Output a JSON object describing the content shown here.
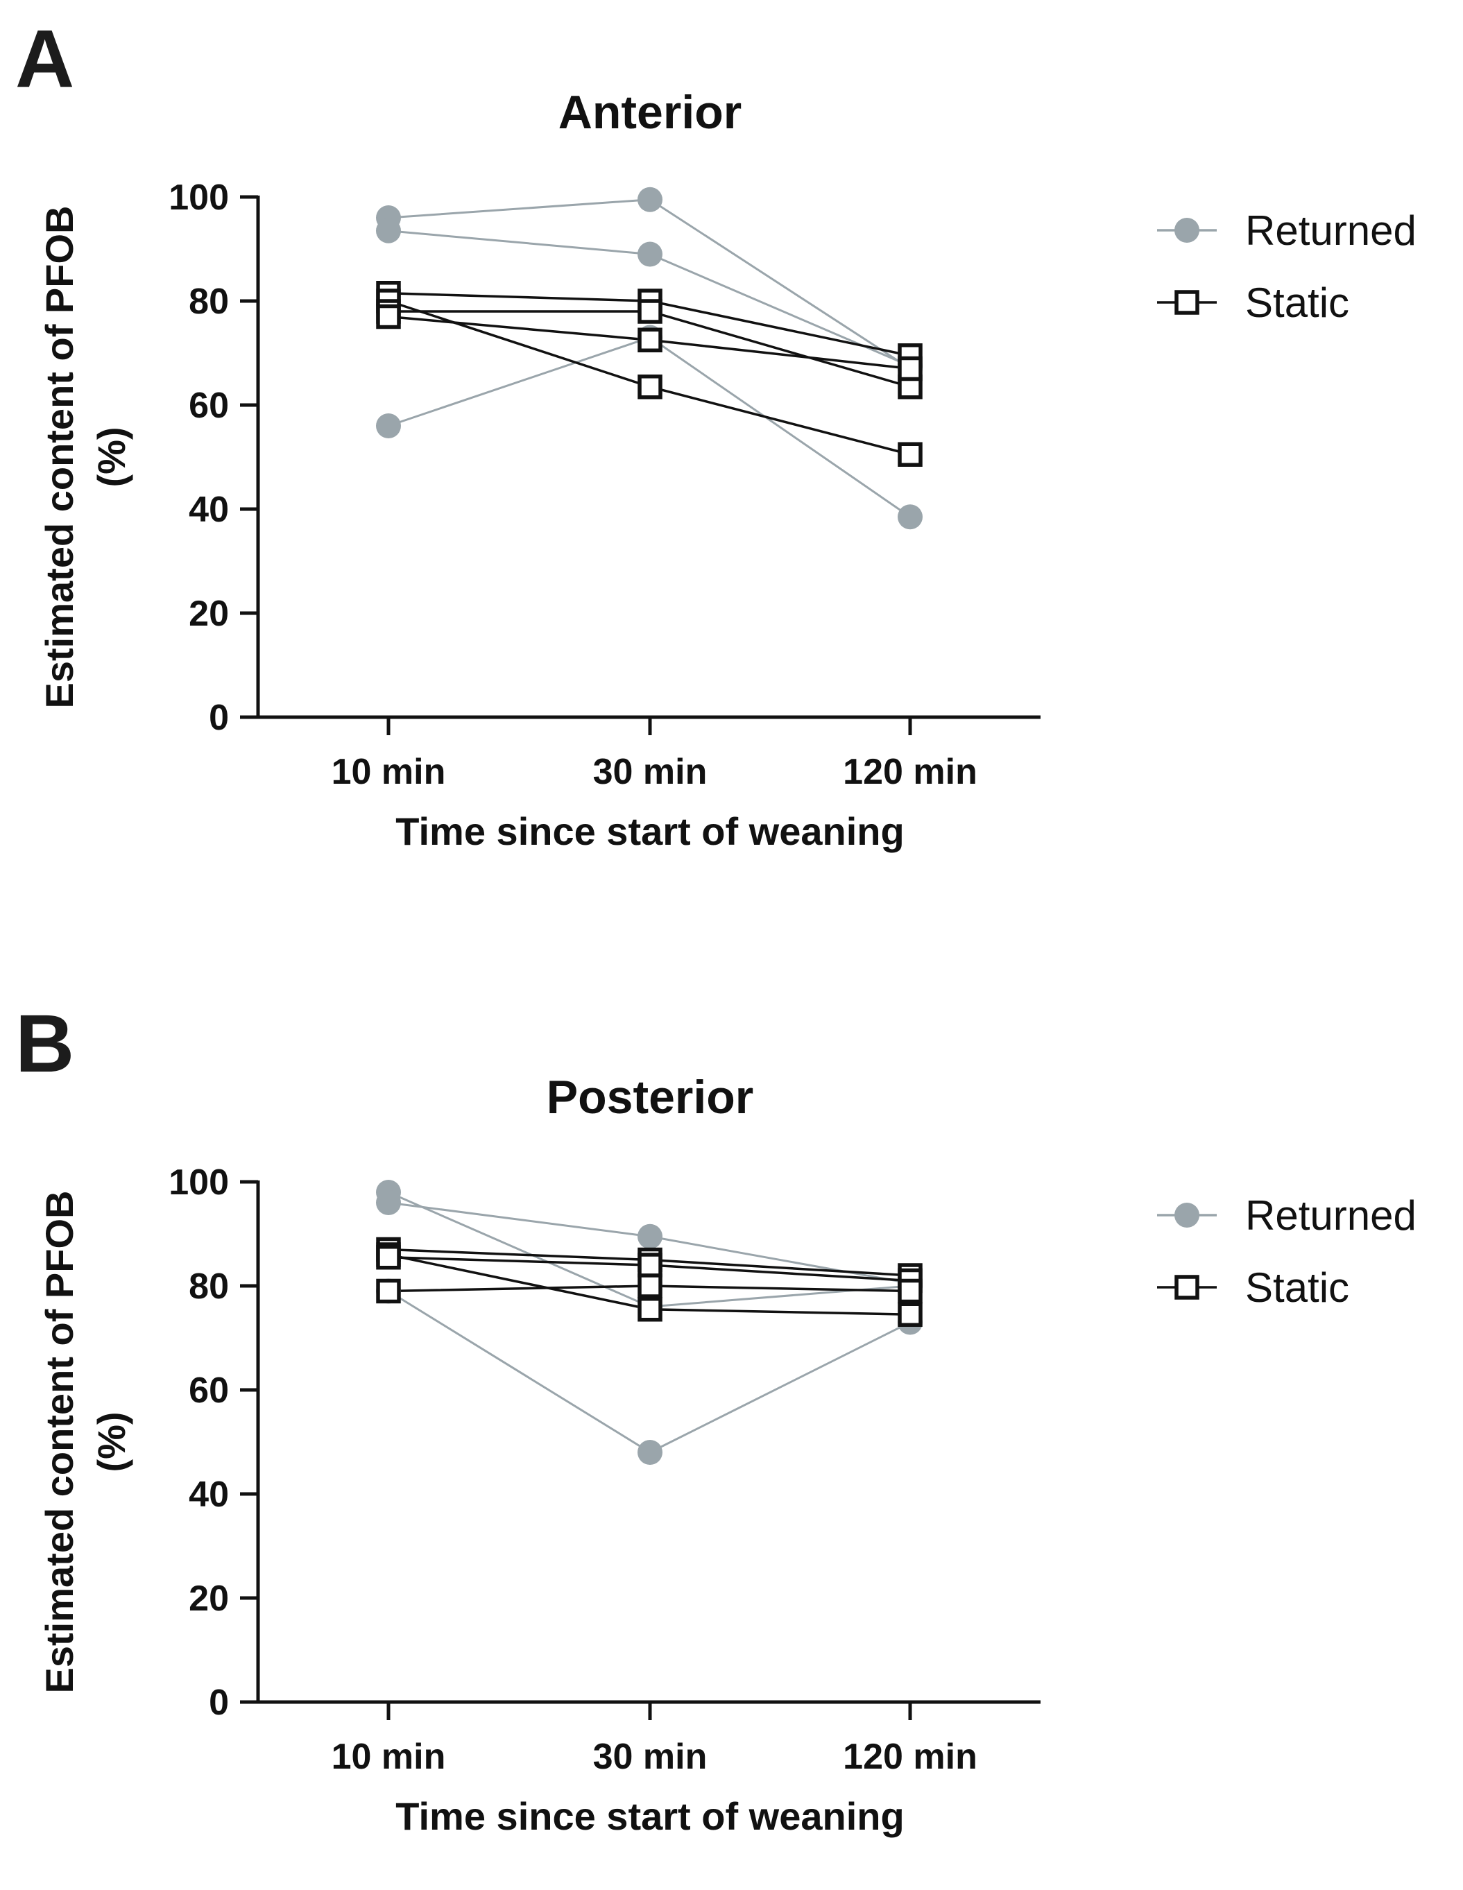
{
  "colors": {
    "returned": "#9aa5ab",
    "static": "#111111",
    "text": "#111111",
    "panel_letter": "#1c1c1c"
  },
  "chart_data": [
    {
      "panel": "A",
      "type": "line",
      "title": "Anterior",
      "xlabel": "Time since start of weaning",
      "ylabel": "Estimated content of PFOB",
      "ylabel_unit": "(%)",
      "categories": [
        "10 min",
        "30 min",
        "120 min"
      ],
      "ylim": [
        0,
        100
      ],
      "yticks": [
        0,
        20,
        40,
        60,
        80,
        100
      ],
      "grid": false,
      "legend_position": "right",
      "legend": [
        {
          "label": "Returned",
          "marker": "circle"
        },
        {
          "label": "Static",
          "marker": "square"
        }
      ],
      "series": [
        {
          "group": "Returned",
          "values": [
            96,
            99.5,
            67
          ]
        },
        {
          "group": "Returned",
          "values": [
            93.5,
            89,
            67.5
          ]
        },
        {
          "group": "Returned",
          "values": [
            56,
            73,
            38.5
          ]
        },
        {
          "group": "Static",
          "values": [
            81.5,
            80,
            69.5
          ]
        },
        {
          "group": "Static",
          "values": [
            80,
            63.5,
            50.5
          ]
        },
        {
          "group": "Static",
          "values": [
            78,
            78,
            63.5
          ]
        },
        {
          "group": "Static",
          "values": [
            77,
            72.5,
            67
          ]
        }
      ]
    },
    {
      "panel": "B",
      "type": "line",
      "title": "Posterior",
      "xlabel": "Time since start of weaning",
      "ylabel": "Estimated content of PFOB",
      "ylabel_unit": "(%)",
      "categories": [
        "10 min",
        "30 min",
        "120 min"
      ],
      "ylim": [
        0,
        100
      ],
      "yticks": [
        0,
        20,
        40,
        60,
        80,
        100
      ],
      "grid": false,
      "legend_position": "right",
      "legend": [
        {
          "label": "Returned",
          "marker": "circle"
        },
        {
          "label": "Static",
          "marker": "square"
        }
      ],
      "series": [
        {
          "group": "Returned",
          "values": [
            98,
            76,
            80
          ]
        },
        {
          "group": "Returned",
          "values": [
            96,
            89.5,
            80.5
          ]
        },
        {
          "group": "Returned",
          "values": [
            79,
            48,
            73
          ]
        },
        {
          "group": "Static",
          "values": [
            87,
            85,
            82
          ]
        },
        {
          "group": "Static",
          "values": [
            86,
            75.5,
            74.5
          ]
        },
        {
          "group": "Static",
          "values": [
            85.5,
            84,
            81
          ]
        },
        {
          "group": "Static",
          "values": [
            79,
            80,
            79
          ]
        }
      ]
    }
  ]
}
